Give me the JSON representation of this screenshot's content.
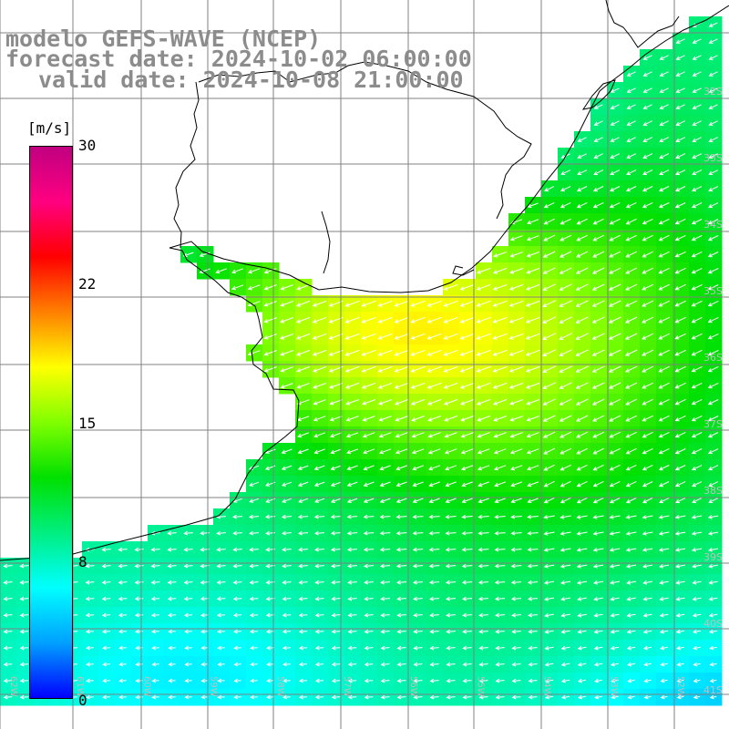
{
  "title": {
    "line1": "modelo GEFS-WAVE (NCEP)",
    "line2": "forecast date: 2024-10-02 06:00:00",
    "line3": "valid date: 2024-10-08 21:00:00"
  },
  "colorbar": {
    "unit": "[m/s]",
    "ticks": [
      "30",
      "22",
      "15",
      "8",
      "0"
    ],
    "colors": [
      "#0000ff",
      "#00a0ff",
      "#00ffff",
      "#00ee80",
      "#00e000",
      "#80ff00",
      "#ffff00",
      "#ff8000",
      "#ff0000",
      "#ff0080",
      "#c00080"
    ]
  },
  "map": {
    "lat_labels": [
      "32S",
      "33S",
      "34S",
      "35S",
      "36S",
      "37S",
      "38S",
      "39S",
      "40S",
      "41S"
    ],
    "lon_labels": [
      "62W",
      "61W",
      "60W",
      "59W",
      "58W",
      "57W",
      "56W",
      "55W",
      "54W",
      "53W",
      "52W",
      "51W"
    ]
  },
  "chart_data": {
    "type": "heatmap",
    "variable": "wind speed with direction arrows",
    "unit": "m/s",
    "value_range": [
      0,
      30
    ],
    "lon_range": [
      -62.5,
      -50.5
    ],
    "lat_range": [
      -41.3,
      -31.0
    ]
  }
}
